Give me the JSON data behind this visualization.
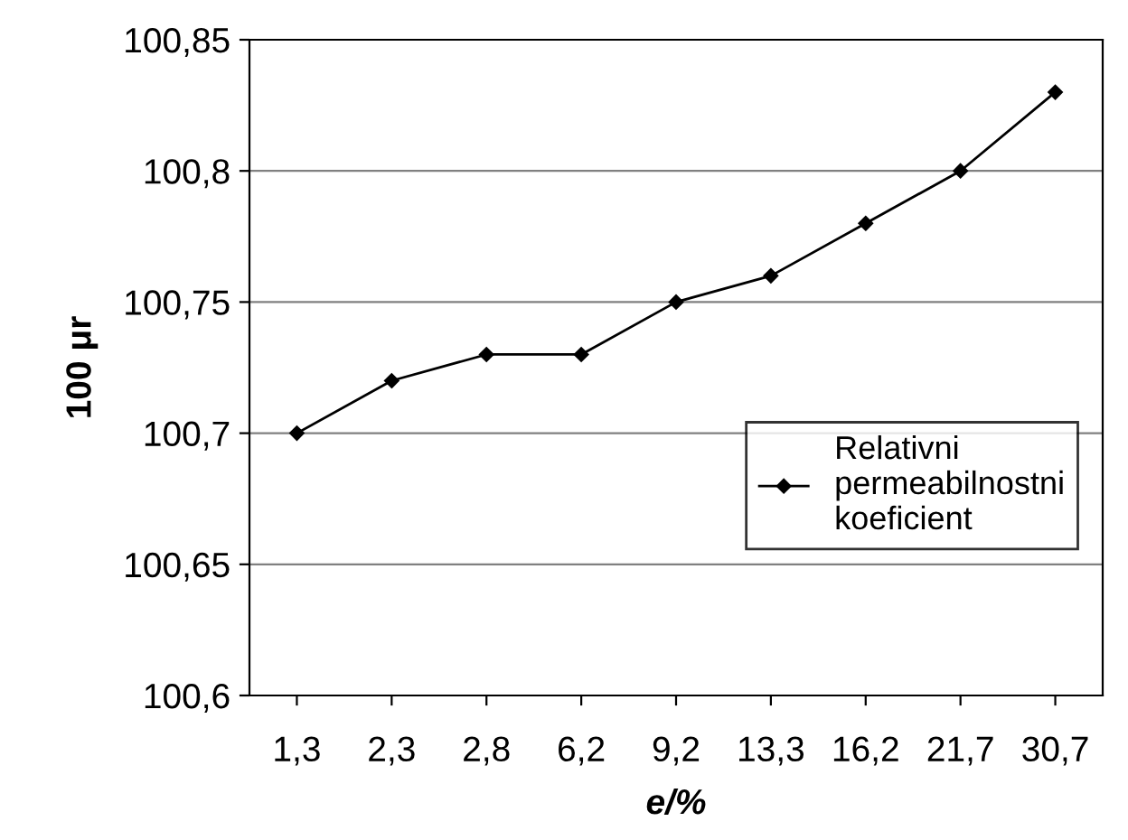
{
  "chart_data": {
    "type": "line",
    "xlabel": "e/%",
    "ylabel": "100 μr",
    "categories": [
      "1,3",
      "2,3",
      "2,8",
      "6,2",
      "9,2",
      "13,3",
      "16,2",
      "21,7",
      "30,7"
    ],
    "series": [
      {
        "name": "Relativni\npermeabilnostni\nkoeficient",
        "color": "#000000",
        "values": [
          100.7,
          100.72,
          100.73,
          100.73,
          100.75,
          100.76,
          100.78,
          100.8,
          100.83
        ]
      }
    ],
    "ylim": [
      100.6,
      100.85
    ],
    "yticks": [
      {
        "value": 100.6,
        "label": "100,6"
      },
      {
        "value": 100.65,
        "label": "100,65"
      },
      {
        "value": 100.7,
        "label": "100,7"
      },
      {
        "value": 100.75,
        "label": "100,75"
      },
      {
        "value": 100.8,
        "label": "100,8"
      },
      {
        "value": 100.85,
        "label": "100,85"
      }
    ],
    "grid": "y",
    "legend": "right",
    "marker": "diamond",
    "line_style": "solid"
  }
}
